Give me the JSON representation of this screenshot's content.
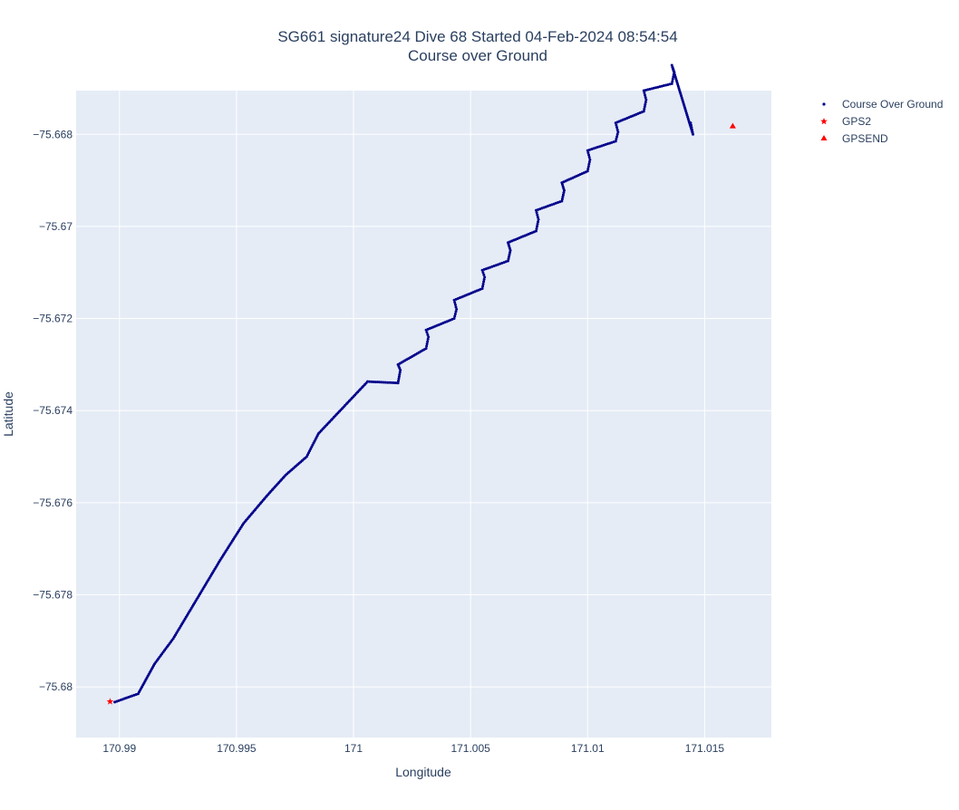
{
  "chart_data": {
    "type": "scatter",
    "title": "SG661 signature24 Dive 68 Started 04-Feb-2024 08:54:54",
    "subtitle": "Course over Ground",
    "xlabel": "Longitude",
    "ylabel": "Latitude",
    "xlim": [
      170.98815,
      171.01785
    ],
    "ylim": [
      -75.6811,
      -75.66705
    ],
    "grid": true,
    "legend_position": "top-right",
    "x_ticks": [
      {
        "value": 170.99,
        "label": "170.99"
      },
      {
        "value": 170.995,
        "label": "170.995"
      },
      {
        "value": 171,
        "label": "171"
      },
      {
        "value": 171.005,
        "label": "171.005"
      },
      {
        "value": 171.01,
        "label": "171.01"
      },
      {
        "value": 171.015,
        "label": "171.015"
      }
    ],
    "y_ticks": [
      {
        "value": -75.668,
        "label": "−75.668"
      },
      {
        "value": -75.67,
        "label": "−75.67"
      },
      {
        "value": -75.672,
        "label": "−75.672"
      },
      {
        "value": -75.674,
        "label": "−75.674"
      },
      {
        "value": -75.676,
        "label": "−75.676"
      },
      {
        "value": -75.678,
        "label": "−75.678"
      },
      {
        "value": -75.68,
        "label": "−75.68"
      }
    ],
    "series": [
      {
        "name": "Course Over Ground",
        "marker": "dot",
        "color": "#00008b",
        "x": [
          170.9898,
          170.9908,
          170.9915,
          170.9923,
          170.9933,
          170.9943,
          170.9953,
          170.9963,
          170.9971,
          170.998,
          170.9985,
          171.0006,
          171.0019,
          171.002,
          171.0019,
          171.0031,
          171.0032,
          171.0031,
          171.0043,
          171.0044,
          171.0043,
          171.0055,
          171.0056,
          171.0055,
          171.0066,
          171.0067,
          171.0066,
          171.0078,
          171.0079,
          171.0078,
          171.0089,
          171.009,
          171.0089,
          171.01,
          171.0101,
          171.01,
          171.0112,
          171.0113,
          171.0112,
          171.0124,
          171.0125,
          171.0124,
          171.0136,
          171.0137,
          171.0136,
          171.0145,
          171.0144
        ],
        "y": [
          -75.68033,
          -75.68015,
          -75.6795,
          -75.67895,
          -75.6781,
          -75.67725,
          -75.67645,
          -75.67585,
          -75.6754,
          -75.675,
          -75.6745,
          -75.67337,
          -75.6734,
          -75.67312,
          -75.673,
          -75.67265,
          -75.6724,
          -75.67225,
          -75.672,
          -75.6718,
          -75.6716,
          -75.67135,
          -75.6711,
          -75.67095,
          -75.67075,
          -75.67052,
          -75.67035,
          -75.6701,
          -75.66985,
          -75.66965,
          -75.66945,
          -75.66922,
          -75.66905,
          -75.6688,
          -75.66855,
          -75.66835,
          -75.66815,
          -75.66795,
          -75.66775,
          -75.6675,
          -75.66725,
          -75.66705,
          -75.6669,
          -75.66665,
          -75.6665,
          -75.668,
          -75.66775
        ]
      },
      {
        "name": "GPS2",
        "marker": "star",
        "color": "#ff0000",
        "x": [
          170.9896
        ],
        "y": [
          -75.68032
        ]
      },
      {
        "name": "GPSEND",
        "marker": "triangle-up",
        "color": "#ff0000",
        "x": [
          171.0162
        ],
        "y": [
          -75.66782
        ]
      }
    ]
  },
  "colors": {
    "plot_bg": "#e5ecf6",
    "grid": "#ffffff",
    "text": "#2a3f5f"
  }
}
